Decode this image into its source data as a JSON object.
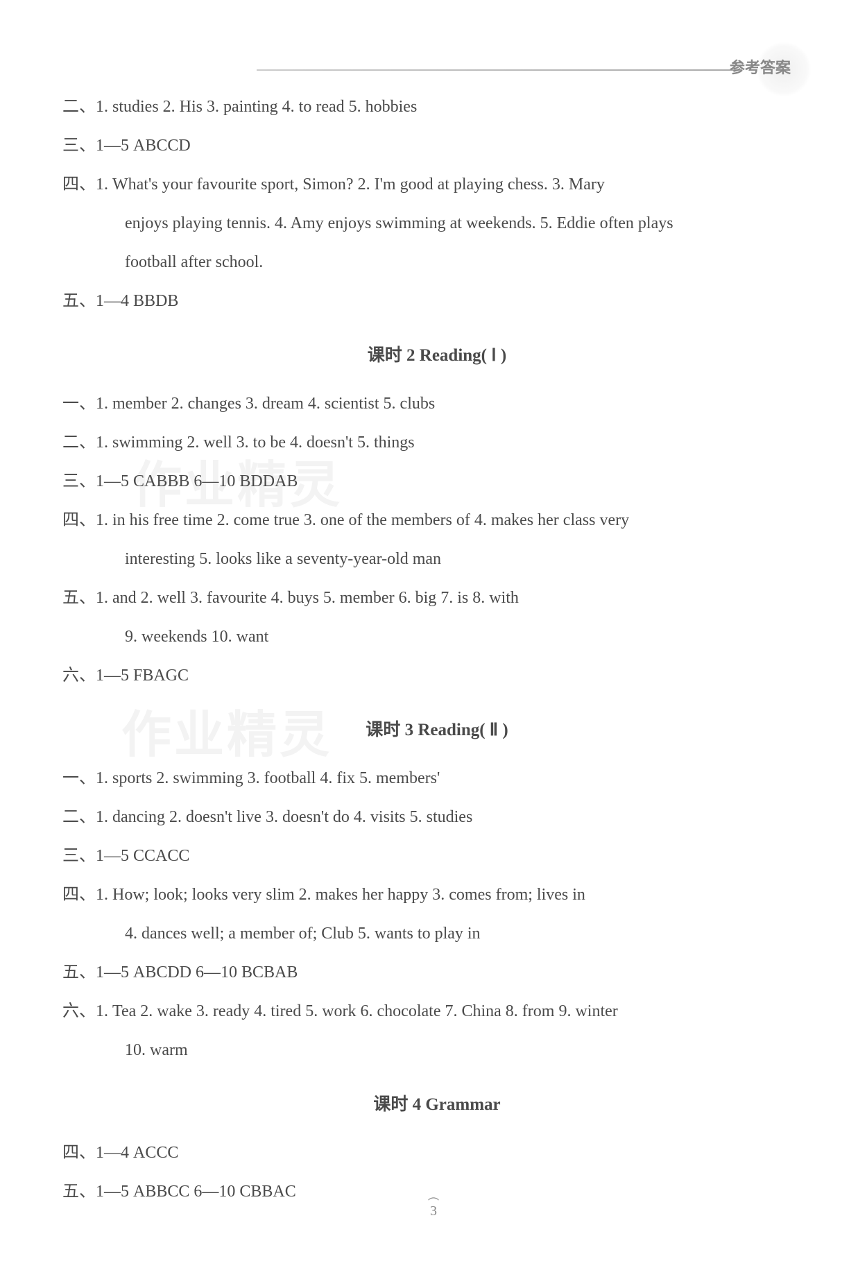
{
  "header": {
    "label": "参考答案"
  },
  "section1": {
    "line2": "二、1. studies  2. His  3. painting  4. to read  5. hobbies",
    "line3": "三、1—5 ABCCD",
    "line4_1": "四、1. What's your favourite sport, Simon?   2. I'm good at playing chess.   3. Mary",
    "line4_2": "enjoys playing tennis.   4. Amy enjoys swimming at weekends.   5. Eddie often plays",
    "line4_3": "football after school.",
    "line5": "五、1—4 BBDB"
  },
  "section2": {
    "title": "课时 2   Reading( Ⅰ )",
    "line1": "一、1. member  2. changes  3. dream  4. scientist  5. clubs",
    "line2": "二、1. swimming  2. well  3. to be  4. doesn't  5. things",
    "line3": "三、1—5 CABBB  6—10 BDDAB",
    "line4_1": "四、1. in his free time  2. come true  3. one of the members of  4. makes her class very",
    "line4_2": "interesting  5. looks like a seventy-year-old man",
    "line5_1": "五、1. and  2. well  3. favourite  4. buys  5. member  6. big  7. is  8. with",
    "line5_2": "9. weekends  10. want",
    "line6": "六、1—5 FBAGC"
  },
  "section3": {
    "title": "课时 3   Reading( Ⅱ )",
    "line1": "一、1. sports  2. swimming  3. football  4. fix  5. members'",
    "line2": "二、1. dancing  2. doesn't live  3. doesn't do  4. visits  5. studies",
    "line3": "三、1—5 CCACC",
    "line4_1": "四、1. How; look; looks very slim  2. makes her happy  3. comes from; lives in",
    "line4_2": "4. dances well; a member of; Club  5. wants to play in",
    "line5": "五、1—5 ABCDD  6—10 BCBAB",
    "line6_1": "六、1. Tea  2. wake  3. ready  4. tired  5. work  6. chocolate  7. China  8. from  9. winter",
    "line6_2": "10. warm"
  },
  "section4": {
    "title": "课时 4   Grammar",
    "line4": "四、1—4 ACCC",
    "line5": "五、1—5 ABBCC  6—10 CBBAC"
  },
  "watermark": {
    "text1": "作业精灵",
    "text2": "作业精灵"
  },
  "pageNumber": "3",
  "colors": {
    "background": "#ffffff",
    "text": "#4a4a4a",
    "header": "#888888",
    "watermark": "#dddddd"
  },
  "typography": {
    "bodyFontSize": 24,
    "titleFontSize": 25,
    "headerFontSize": 22,
    "lineHeight": 2.0
  }
}
